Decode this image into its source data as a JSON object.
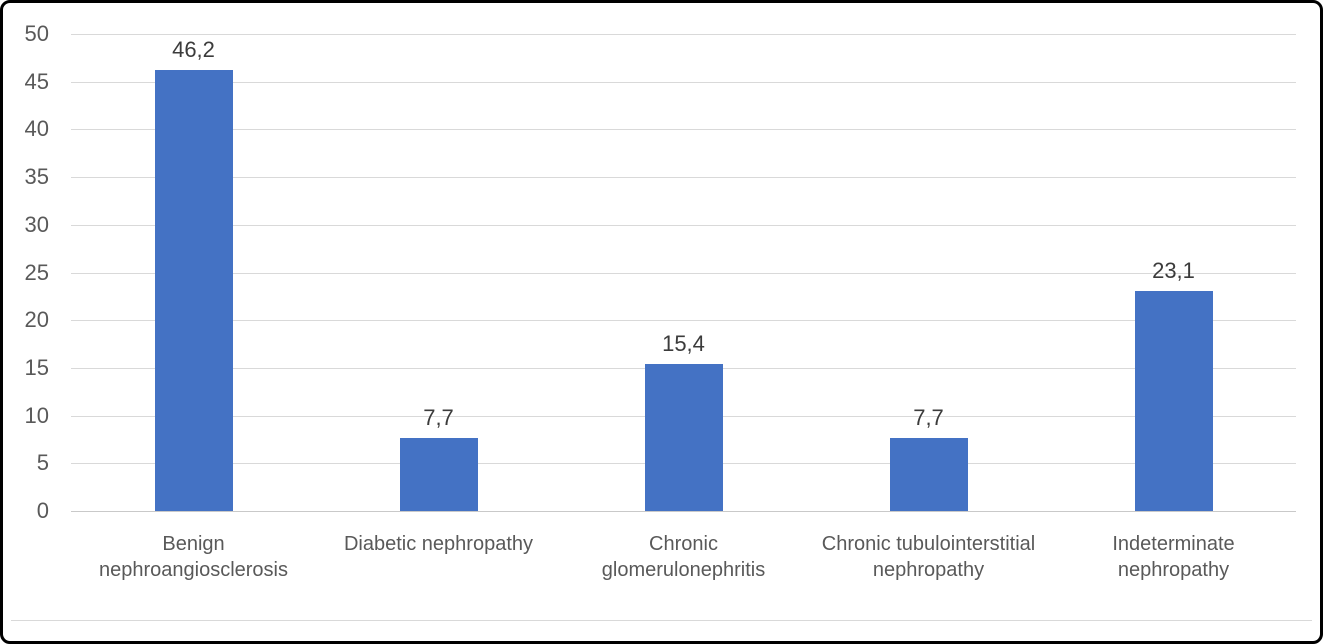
{
  "chart_data": {
    "type": "bar",
    "title": "",
    "xlabel": "",
    "ylabel": "",
    "categories": [
      "Benign nephroangiosclerosis",
      "Diabetic nephropathy",
      "Chronic glomerulonephritis",
      "Chronic tubulointerstitial nephropathy",
      "Indeterminate nephropathy"
    ],
    "values": [
      46.2,
      7.7,
      15.4,
      7.7,
      23.1
    ],
    "value_labels": [
      "46,2",
      "7,7",
      "15,4",
      "7,7",
      "23,1"
    ],
    "ylim": [
      0,
      50
    ],
    "yticks": [
      0,
      5,
      10,
      15,
      20,
      25,
      30,
      35,
      40,
      45,
      50
    ],
    "ytick_labels": [
      "0",
      "5",
      "10",
      "15",
      "20",
      "25",
      "30",
      "35",
      "40",
      "45",
      "50"
    ],
    "grid": true,
    "legend": false,
    "legend_position": "none",
    "colors": {
      "bar": "#4472C4",
      "gridline": "#D9D9D9",
      "axis_text": "#595959",
      "data_label_text": "#3B3B3B",
      "frame_border": "#000000"
    }
  }
}
